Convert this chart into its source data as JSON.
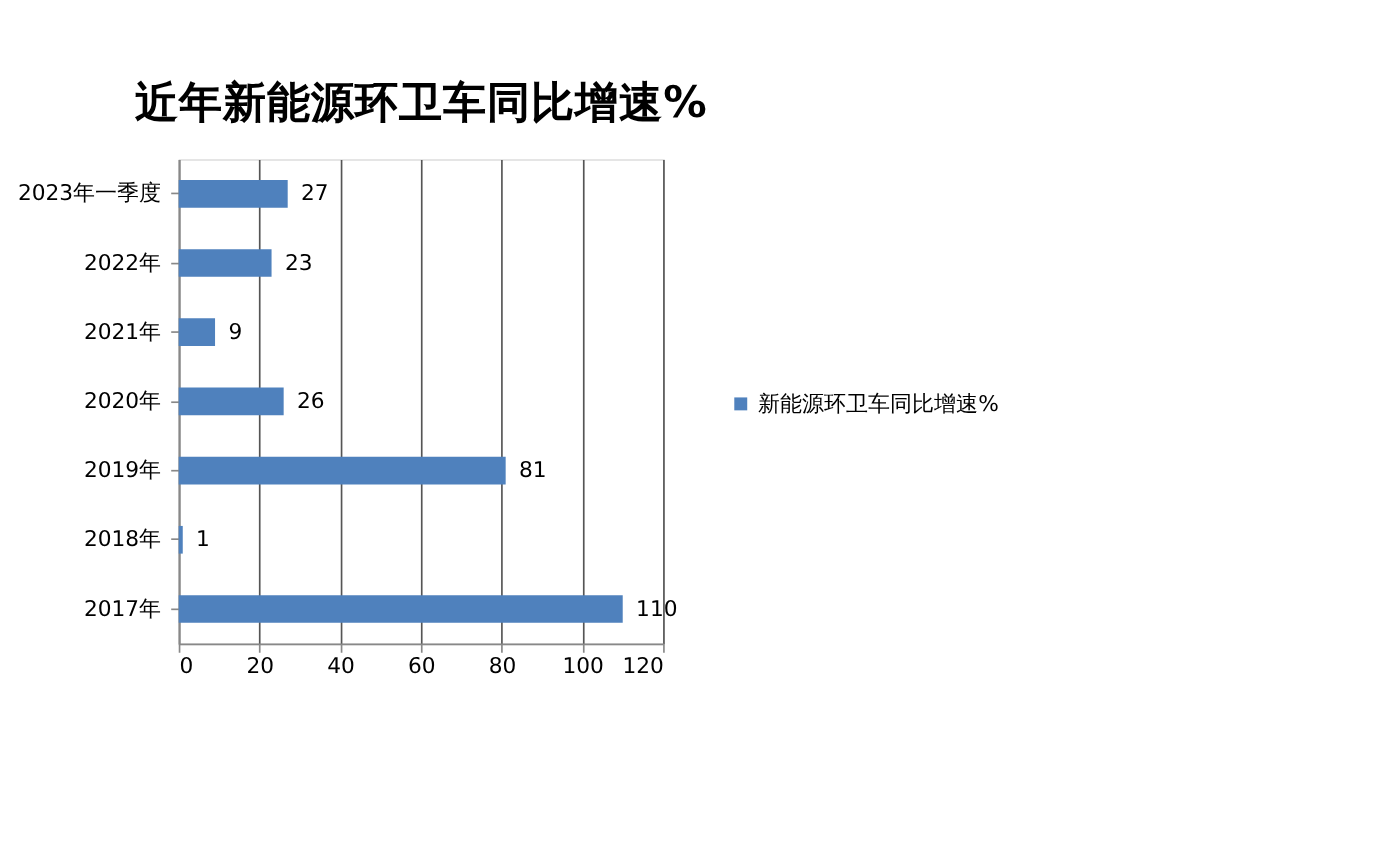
{
  "chart_data": {
    "type": "bar",
    "orientation": "horizontal",
    "title": "近年新能源环卫车同比增速%",
    "categories": [
      "2023年一季度",
      "2022年",
      "2021年",
      "2020年",
      "2019年",
      "2018年",
      "2017年"
    ],
    "series": [
      {
        "name": "新能源环卫车同比增速%",
        "color": "#4f81bd",
        "values": [
          27,
          23,
          9,
          26,
          81,
          1,
          110
        ]
      }
    ],
    "xlim": [
      0,
      120
    ],
    "xticks": [
      0,
      20,
      40,
      60,
      80,
      100,
      120
    ],
    "grid": "x",
    "legend": "right",
    "data_labels": true
  }
}
